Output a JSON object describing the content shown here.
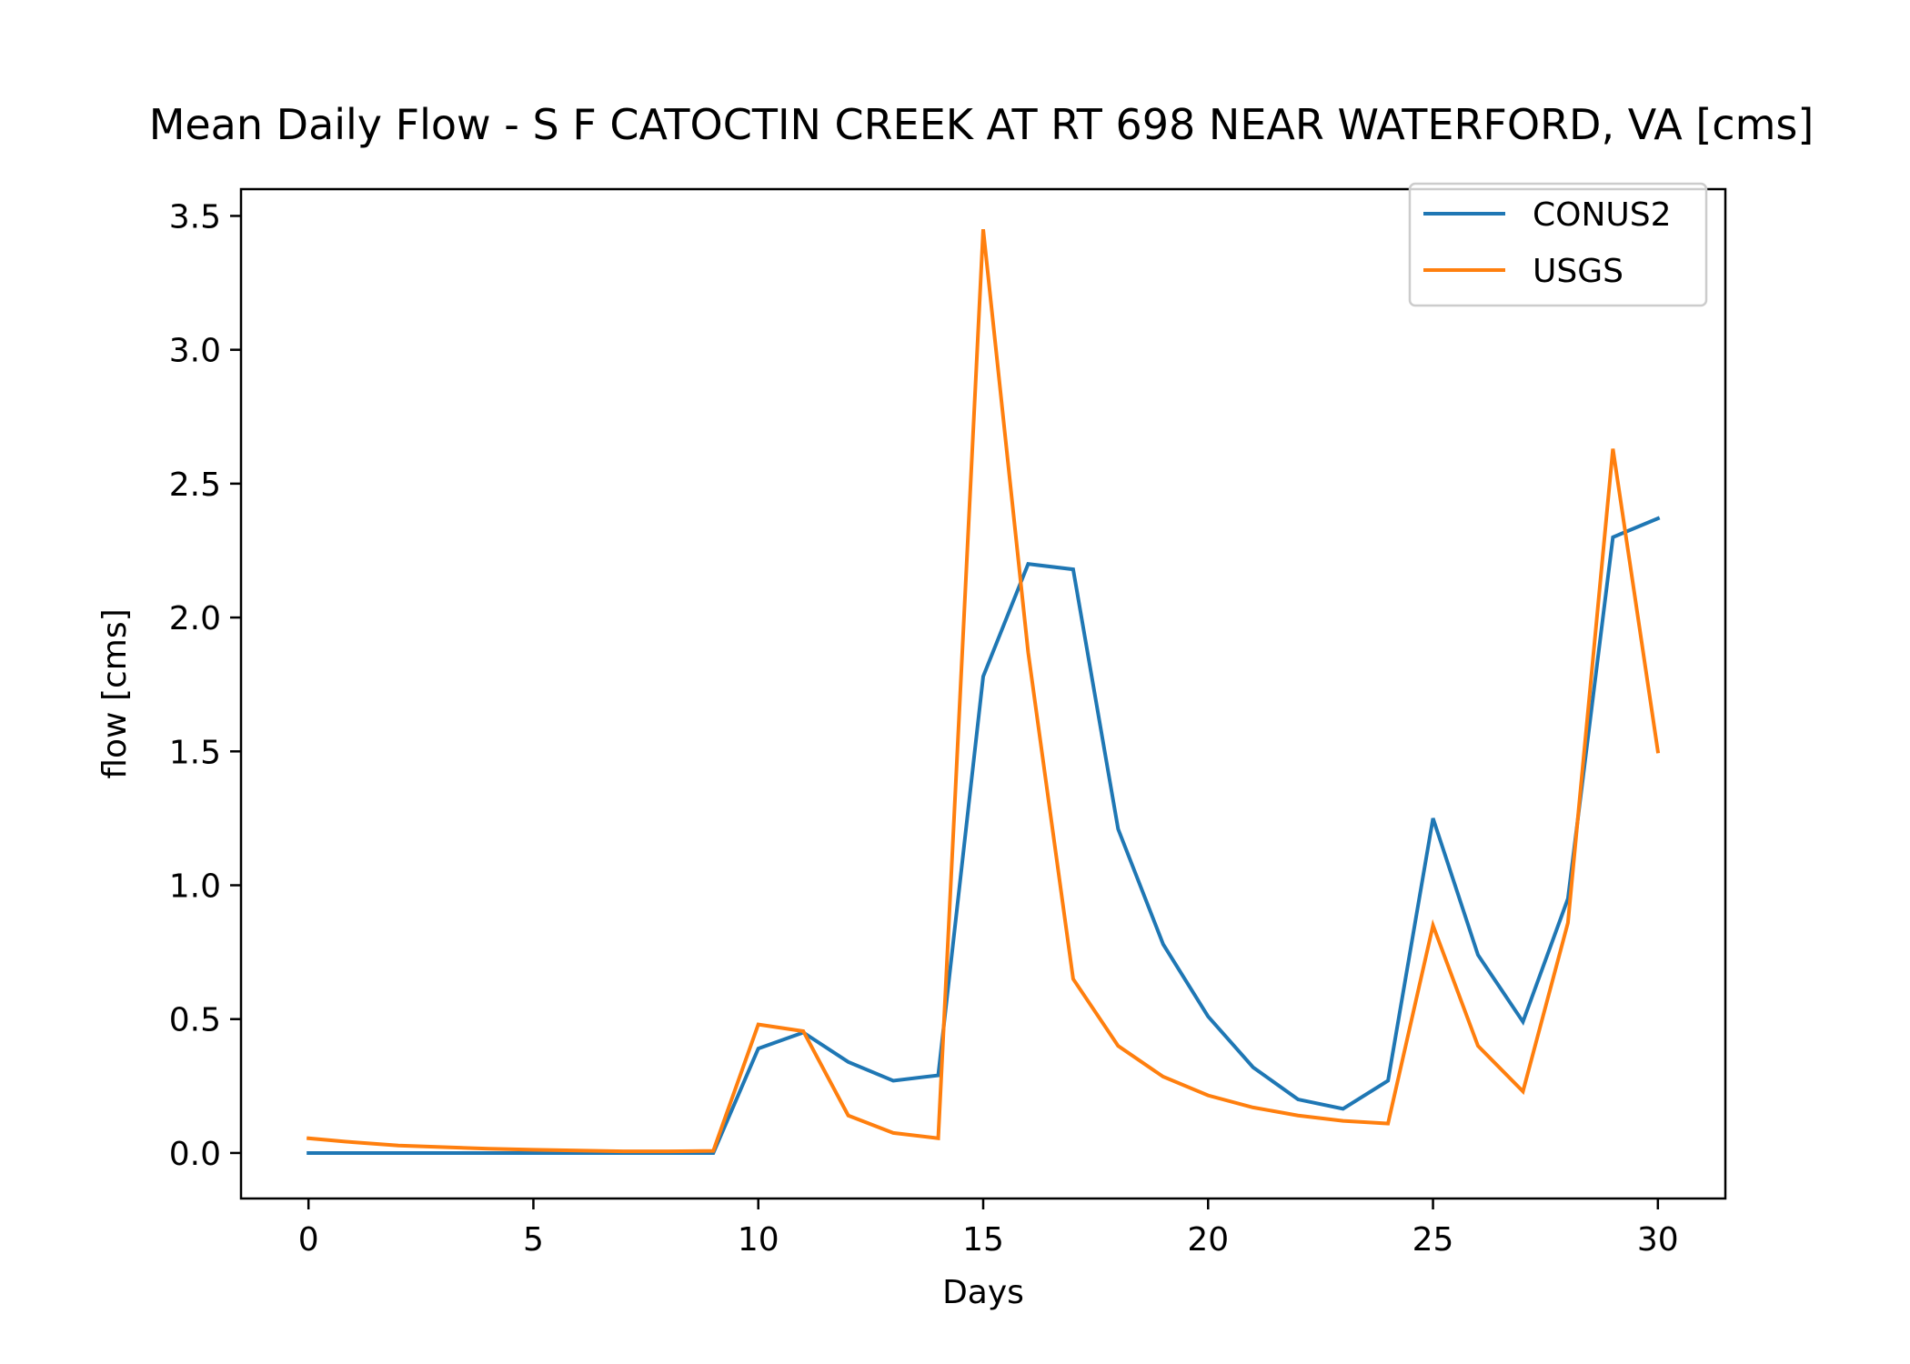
{
  "chart_data": {
    "type": "line",
    "title": "Mean Daily Flow - S F CATOCTIN CREEK AT RT 698 NEAR WATERFORD, VA [cms]",
    "xlabel": "Days",
    "ylabel": "flow [cms]",
    "xlim": [
      -1.5,
      31.5
    ],
    "ylim": [
      -0.17,
      3.6
    ],
    "xticks": [
      0,
      5,
      10,
      15,
      20,
      25,
      30
    ],
    "yticks": [
      0.0,
      0.5,
      1.0,
      1.5,
      2.0,
      2.5,
      3.0,
      3.5
    ],
    "ytick_labels": [
      "0.0",
      "0.5",
      "1.0",
      "1.5",
      "2.0",
      "2.5",
      "3.0",
      "3.5"
    ],
    "grid": false,
    "legend_position": "top-right",
    "x": [
      0,
      1,
      2,
      3,
      4,
      5,
      6,
      7,
      8,
      9,
      10,
      11,
      12,
      13,
      14,
      15,
      16,
      17,
      18,
      19,
      20,
      21,
      22,
      23,
      24,
      25,
      26,
      27,
      28,
      29,
      30
    ],
    "series": [
      {
        "name": "CONUS2",
        "color": "#1f77b4",
        "values": [
          0.0,
          0.0,
          0.0,
          0.0,
          0.0,
          0.0,
          0.0,
          0.0,
          0.0,
          0.0,
          0.39,
          0.45,
          0.34,
          0.27,
          0.29,
          1.78,
          2.2,
          2.18,
          1.21,
          0.78,
          0.51,
          0.32,
          0.2,
          0.165,
          0.27,
          1.25,
          0.74,
          0.49,
          0.95,
          2.3,
          2.37
        ]
      },
      {
        "name": "USGS",
        "color": "#ff7f0e",
        "values": [
          0.055,
          0.04,
          0.028,
          0.022,
          0.016,
          0.012,
          0.009,
          0.006,
          0.006,
          0.008,
          0.48,
          0.455,
          0.14,
          0.075,
          0.055,
          3.45,
          1.87,
          0.65,
          0.4,
          0.285,
          0.215,
          0.17,
          0.14,
          0.12,
          0.11,
          0.85,
          0.4,
          0.23,
          0.86,
          2.63,
          1.5
        ]
      }
    ]
  }
}
